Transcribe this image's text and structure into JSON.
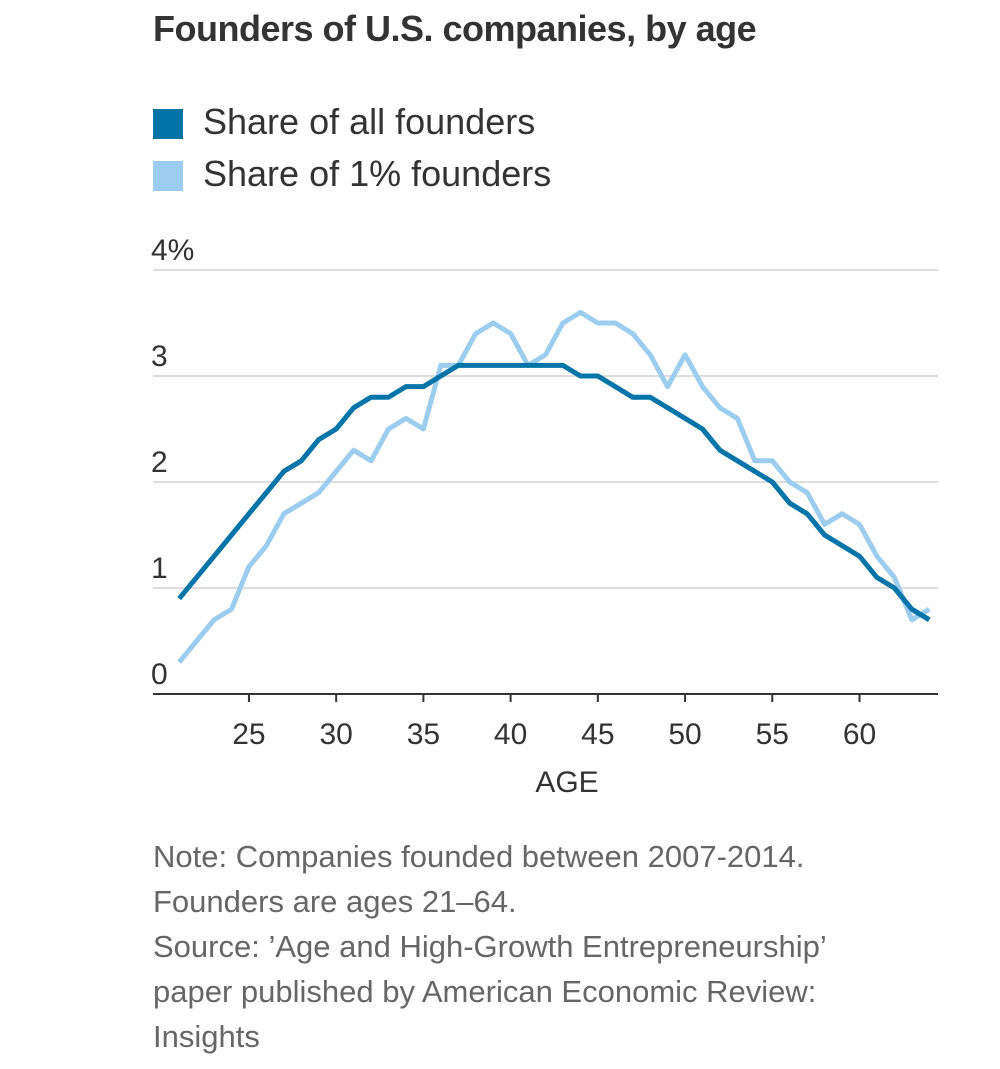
{
  "chart_data": {
    "type": "line",
    "title": "Founders of U.S. companies, by age",
    "xlabel": "AGE",
    "ylabel": "",
    "x": [
      21,
      22,
      23,
      24,
      25,
      26,
      27,
      28,
      29,
      30,
      31,
      32,
      33,
      34,
      35,
      36,
      37,
      38,
      39,
      40,
      41,
      42,
      43,
      44,
      45,
      46,
      47,
      48,
      49,
      50,
      51,
      52,
      53,
      54,
      55,
      56,
      57,
      58,
      59,
      60,
      61,
      62,
      63,
      64
    ],
    "series": [
      {
        "name": "Share of all founders",
        "color": "#0274a8",
        "values": [
          0.9,
          1.1,
          1.3,
          1.5,
          1.7,
          1.9,
          2.1,
          2.2,
          2.4,
          2.5,
          2.7,
          2.8,
          2.8,
          2.9,
          2.9,
          3.0,
          3.1,
          3.1,
          3.1,
          3.1,
          3.1,
          3.1,
          3.1,
          3.0,
          3.0,
          2.9,
          2.8,
          2.8,
          2.7,
          2.6,
          2.5,
          2.3,
          2.2,
          2.1,
          2.0,
          1.8,
          1.7,
          1.5,
          1.4,
          1.3,
          1.1,
          1.0,
          0.8,
          0.7
        ]
      },
      {
        "name": "Share of 1% founders",
        "color": "#9ccdee",
        "values": [
          0.3,
          0.5,
          0.7,
          0.8,
          1.2,
          1.4,
          1.7,
          1.8,
          1.9,
          2.1,
          2.3,
          2.2,
          2.5,
          2.6,
          2.5,
          3.1,
          3.1,
          3.4,
          3.5,
          3.4,
          3.1,
          3.2,
          3.5,
          3.6,
          3.5,
          3.5,
          3.4,
          3.2,
          2.9,
          3.2,
          2.9,
          2.7,
          2.6,
          2.2,
          2.2,
          2.0,
          1.9,
          1.6,
          1.7,
          1.6,
          1.3,
          1.1,
          0.7,
          0.8
        ]
      }
    ],
    "xticks": [
      25,
      30,
      35,
      40,
      45,
      50,
      55,
      60
    ],
    "yticks": [
      {
        "value": 0,
        "label": "0"
      },
      {
        "value": 1,
        "label": "1"
      },
      {
        "value": 2,
        "label": "2"
      },
      {
        "value": 3,
        "label": "3"
      },
      {
        "value": 4,
        "label": "4%"
      }
    ],
    "xlim": [
      19.5,
      64.5
    ],
    "ylim": [
      0,
      4
    ],
    "legend": "top-left"
  },
  "notes": {
    "line1": "Note: Companies founded between 2007-2014.",
    "line2": "Founders are ages 21–64.",
    "line3": "Source: ’Age and High-Growth Entrepreneurship’",
    "line4": "paper published by American Economic Review:",
    "line5": "Insights"
  }
}
